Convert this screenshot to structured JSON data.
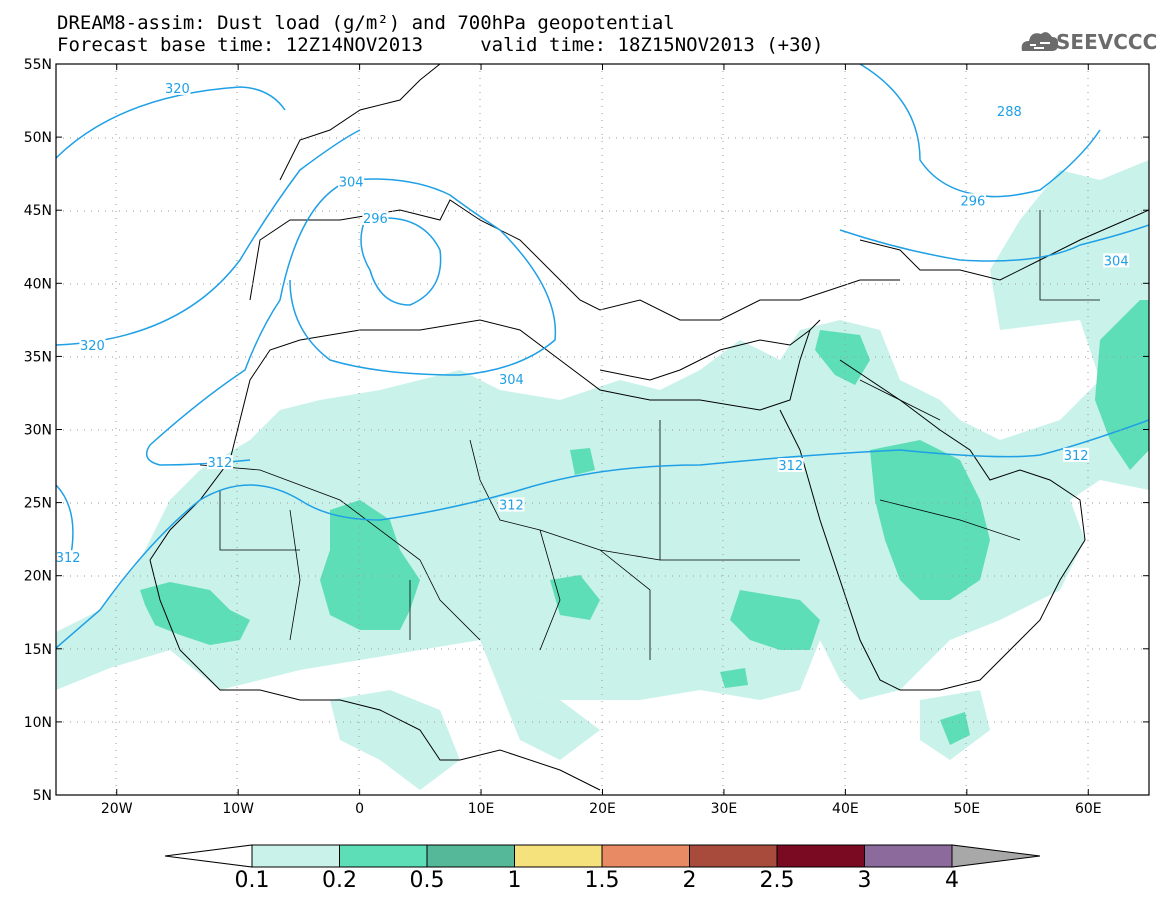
{
  "header": {
    "title_line1": "DREAM8-assim: Dust load (g/m²) and 700hPa geopotential",
    "title_line2": "Forecast base time: 12Z14NOV2013     valid time: 18Z15NOV2013 (+30)",
    "logo_text": "SEEVCCC",
    "logo_icon": "cloud-logo-icon"
  },
  "map": {
    "lon_range": [
      -25,
      65
    ],
    "lat_range": [
      5,
      55
    ],
    "lat_labels": [
      "55N",
      "50N",
      "45N",
      "40N",
      "35N",
      "30N",
      "25N",
      "20N",
      "15N",
      "10N",
      "5N"
    ],
    "lon_labels": [
      "20W",
      "10W",
      "0",
      "10E",
      "20E",
      "30E",
      "40E",
      "50E",
      "60E"
    ],
    "grid": true
  },
  "contours": {
    "color": "#1fa0e6",
    "labels": [
      {
        "text": "320",
        "lon": -15,
        "lat": 53.3
      },
      {
        "text": "320",
        "lon": -22,
        "lat": 35.7
      },
      {
        "text": "304",
        "lon": -0.7,
        "lat": 46.9
      },
      {
        "text": "296",
        "lon": 1.3,
        "lat": 44.4
      },
      {
        "text": "304",
        "lon": 12.5,
        "lat": 33.4
      },
      {
        "text": "312",
        "lon": -11.5,
        "lat": 27.7
      },
      {
        "text": "312",
        "lon": 12.5,
        "lat": 24.8
      },
      {
        "text": "312",
        "lon": 35.5,
        "lat": 27.5
      },
      {
        "text": "312",
        "lon": 59,
        "lat": 28.2
      },
      {
        "text": "304",
        "lon": 62.3,
        "lat": 41.5
      },
      {
        "text": "296",
        "lon": 50.5,
        "lat": 45.6
      },
      {
        "text": "288",
        "lon": 53.5,
        "lat": 51.7
      },
      {
        "text": "312",
        "lon": -24,
        "lat": 21.2
      }
    ]
  },
  "colorbar": {
    "labels": [
      "0.1",
      "0.2",
      "0.5",
      "1",
      "1.5",
      "2",
      "2.5",
      "3",
      "4"
    ],
    "colors": [
      "#c8f2ea",
      "#5ddeb6",
      "#55b898",
      "#f5e27c",
      "#e88a64",
      "#a84a3c",
      "#7a0a22",
      "#8c6a9c"
    ],
    "below_color": "#ffffff",
    "above_color": "#a8a8a8"
  }
}
